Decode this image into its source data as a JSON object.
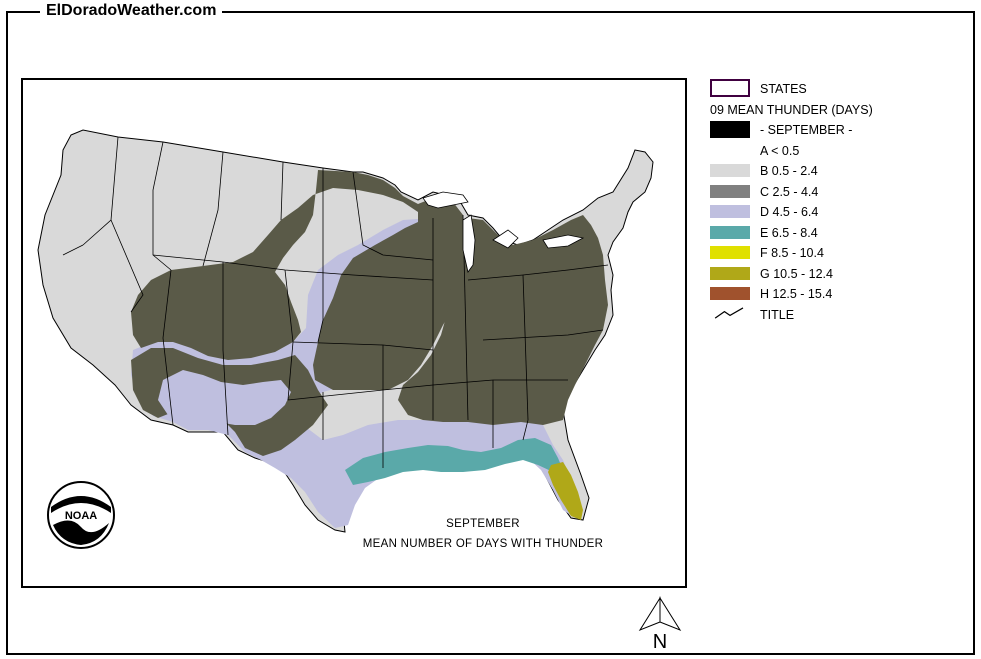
{
  "site": {
    "title": "ElDoradoWeather.com"
  },
  "map": {
    "caption_line1": "SEPTEMBER",
    "caption_line2": "MEAN NUMBER OF DAYS WITH THUNDER",
    "logo_text": "NOAA"
  },
  "legend": {
    "states_label": "STATES",
    "title": "09 MEAN THUNDER (DAYS)",
    "month_label": "- SEPTEMBER -",
    "classes": [
      {
        "label": "A < 0.5",
        "color": "#000000"
      },
      {
        "label": "B 0.5 - 2.4",
        "color": "#d9d9d9"
      },
      {
        "label": "C 2.5 - 4.4",
        "color": "#808080"
      },
      {
        "label": "D 4.5 - 6.4",
        "color": "#bfbfdf"
      },
      {
        "label": "E 6.5 - 8.4",
        "color": "#5aa9a9"
      },
      {
        "label": "F 8.5 - 10.4",
        "color": "#e0e000"
      },
      {
        "label": "G 10.5 - 12.4",
        "color": "#b0a818"
      },
      {
        "label": "H 12.5 - 15.4",
        "color": "#a0522d"
      }
    ],
    "title_line_label": "TITLE"
  },
  "compass": {
    "label": "N"
  },
  "colors": {
    "state_outline": "#400040",
    "low": "#d9d9d9",
    "mid": "#bfbfdf",
    "high": "#5a5a48",
    "coast": "#5aa9a9",
    "florida": "#b0a818"
  }
}
